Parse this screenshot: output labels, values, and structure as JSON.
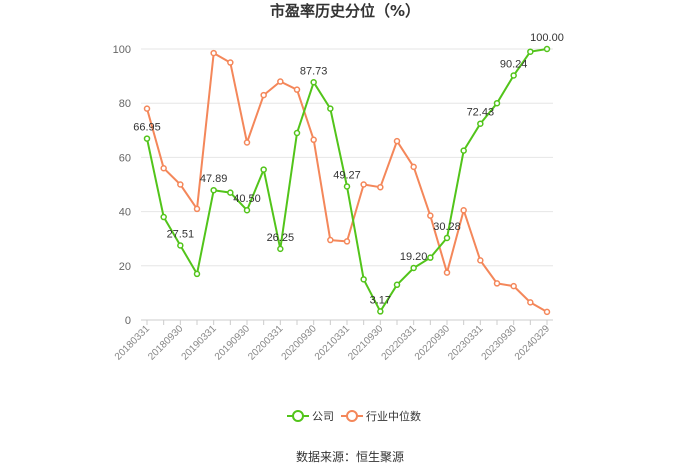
{
  "chart_data": {
    "type": "line",
    "title": "市盈率历史分位（%）",
    "source": "数据来源：恒生聚源",
    "x": [
      "20180331",
      "20180630",
      "20180930",
      "20181231",
      "20190331",
      "20190630",
      "20190930",
      "20191231",
      "20200331",
      "20200630",
      "20200930",
      "20201231",
      "20210331",
      "20210630",
      "20210930",
      "20211231",
      "20220331",
      "20220630",
      "20220930",
      "20221231",
      "20230331",
      "20230630",
      "20230930",
      "20231231",
      "20240329"
    ],
    "x_tick_labels": [
      "20180331",
      "20180930",
      "20190331",
      "20190930",
      "20200331",
      "20200930",
      "20210331",
      "20210930",
      "20220331",
      "20220930",
      "20230331",
      "20230930",
      "20240329"
    ],
    "ylim": [
      0,
      100
    ],
    "y_ticks": [
      0,
      20,
      40,
      60,
      80,
      100
    ],
    "grid": true,
    "legend_position": "bottom",
    "series": [
      {
        "name": "公司",
        "color": "#52c41a",
        "values": [
          66.95,
          38.0,
          27.51,
          17.0,
          47.89,
          47.0,
          40.5,
          55.5,
          26.25,
          69.0,
          87.73,
          78.0,
          49.27,
          15.0,
          3.17,
          13.0,
          19.2,
          23.0,
          30.28,
          62.5,
          72.43,
          80.0,
          90.24,
          99.0,
          100.0
        ],
        "labels": {
          "0": "66.95",
          "2": "27.51",
          "4": "47.89",
          "6": "40.50",
          "8": "26.25",
          "10": "87.73",
          "12": "49.27",
          "14": "3.17",
          "16": "19.20",
          "18": "30.28",
          "20": "72.43",
          "22": "90.24",
          "24": "100.00"
        }
      },
      {
        "name": "行业中位数",
        "color": "#f4875a",
        "values": [
          78.0,
          56.0,
          50.0,
          41.0,
          98.5,
          95.0,
          65.5,
          83.0,
          88.0,
          85.0,
          66.5,
          29.5,
          29.0,
          50.0,
          49.0,
          66.0,
          56.5,
          38.5,
          17.5,
          40.5,
          22.0,
          13.5,
          12.5,
          6.5,
          3.0
        ]
      }
    ]
  }
}
